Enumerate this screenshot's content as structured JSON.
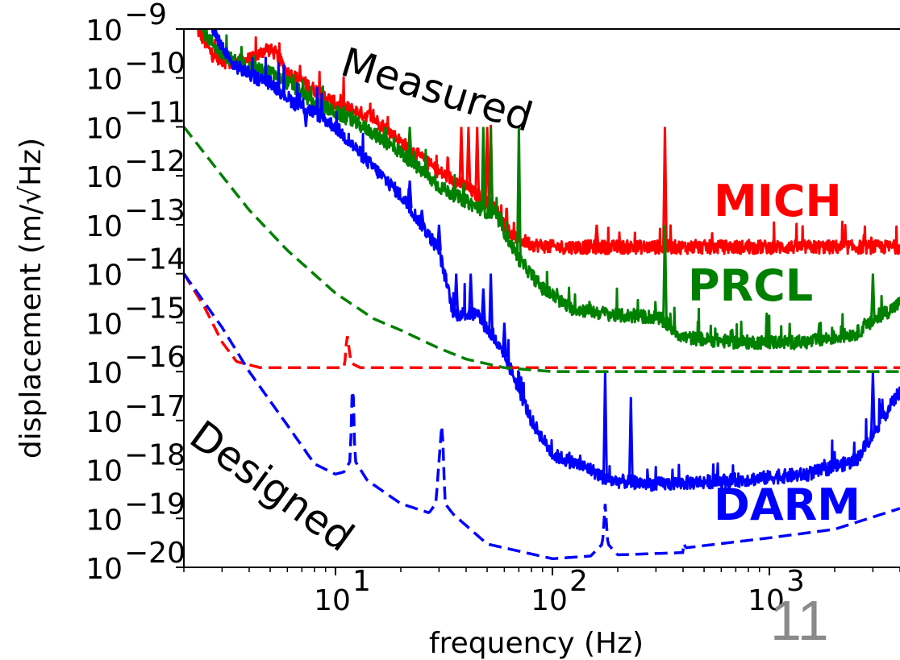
{
  "page_number": "11",
  "chart_data": {
    "type": "line",
    "xscale": "log",
    "yscale": "log",
    "xlim": [
      2,
      4000
    ],
    "ylim": [
      1e-20,
      1e-09
    ],
    "xlabel": "frequency (Hz)",
    "ylabel": "displacement (m/√Hz)",
    "x_ticks": [
      {
        "value": 10,
        "base": "10",
        "exp": "1"
      },
      {
        "value": 100,
        "base": "10",
        "exp": "2"
      },
      {
        "value": 1000,
        "base": "10",
        "exp": "3"
      }
    ],
    "y_ticks": [
      {
        "value": 1e-09,
        "base": "10",
        "exp": "−9"
      },
      {
        "value": 1e-10,
        "base": "10",
        "exp": "−10"
      },
      {
        "value": 1e-11,
        "base": "10",
        "exp": "−11"
      },
      {
        "value": 1e-12,
        "base": "10",
        "exp": "−12"
      },
      {
        "value": 1e-13,
        "base": "10",
        "exp": "−13"
      },
      {
        "value": 1e-14,
        "base": "10",
        "exp": "−14"
      },
      {
        "value": 1e-15,
        "base": "10",
        "exp": "−15"
      },
      {
        "value": 1e-16,
        "base": "10",
        "exp": "−16"
      },
      {
        "value": 1e-17,
        "base": "10",
        "exp": "−17"
      },
      {
        "value": 1e-18,
        "base": "10",
        "exp": "−18"
      },
      {
        "value": 1e-19,
        "base": "10",
        "exp": "−19"
      },
      {
        "value": 1e-20,
        "base": "10",
        "exp": "−20"
      }
    ],
    "series": [
      {
        "key": "mich_measured",
        "group": "measured",
        "color": "#ff0000",
        "style": "solid",
        "points": [
          [
            2.3,
            1e-09
          ],
          [
            2.7,
            3e-10
          ],
          [
            3.2,
            2e-10
          ],
          [
            4.2,
            2.5e-10
          ],
          [
            4.8,
            4e-10
          ],
          [
            5.3,
            3.2e-10
          ],
          [
            6,
            1.3e-10
          ],
          [
            7.5,
            7e-11
          ],
          [
            10,
            3e-11
          ],
          [
            15,
            1.5e-11
          ],
          [
            20,
            5e-12
          ],
          [
            30,
            1.2e-12
          ],
          [
            40,
            6e-13
          ],
          [
            55,
            2e-13
          ],
          [
            65,
            6e-14
          ],
          [
            80,
            4e-14
          ],
          [
            100,
            3.5e-14
          ],
          [
            300,
            3.5e-14
          ],
          [
            1000,
            3.5e-14
          ],
          [
            4000,
            3.5e-14
          ]
        ],
        "spikes": [
          [
            38,
            1e-11
          ],
          [
            41,
            1e-11
          ],
          [
            45,
            1e-11
          ],
          [
            50,
            1e-11
          ],
          [
            52,
            1.1e-11
          ],
          [
            330,
            1e-11
          ],
          [
            160,
            1e-13
          ]
        ]
      },
      {
        "key": "prcl_measured",
        "group": "measured",
        "color": "#008000",
        "style": "solid",
        "points": [
          [
            2.4,
            1e-09
          ],
          [
            3,
            3e-10
          ],
          [
            4,
            1.6e-10
          ],
          [
            5,
            1.3e-10
          ],
          [
            6.3,
            7e-11
          ],
          [
            8,
            3e-11
          ],
          [
            10,
            2e-11
          ],
          [
            14,
            9e-12
          ],
          [
            20,
            3e-12
          ],
          [
            30,
            6e-13
          ],
          [
            40,
            3e-13
          ],
          [
            55,
            1.5e-13
          ],
          [
            70,
            2e-14
          ],
          [
            90,
            5e-15
          ],
          [
            120,
            2e-15
          ],
          [
            200,
            1.4e-15
          ],
          [
            300,
            1.3e-15
          ],
          [
            330,
            1e-15
          ],
          [
            400,
            5e-16
          ],
          [
            700,
            4e-16
          ],
          [
            1500,
            4e-16
          ],
          [
            2500,
            6e-16
          ],
          [
            4000,
            2.5e-15
          ]
        ],
        "spikes": [
          [
            17,
            1e-11
          ],
          [
            22,
            1e-11
          ],
          [
            26,
            2e-12
          ],
          [
            48,
            1e-11
          ],
          [
            52,
            1e-11
          ],
          [
            70,
            1e-11
          ],
          [
            330,
            1e-13
          ],
          [
            3000,
            1e-14
          ],
          [
            1700,
            1e-15
          ]
        ]
      },
      {
        "key": "darm_measured",
        "group": "measured",
        "color": "#0000ff",
        "style": "solid",
        "points": [
          [
            2.7,
            1e-09
          ],
          [
            3.3,
            2e-10
          ],
          [
            4.3,
            1e-10
          ],
          [
            5,
            8e-11
          ],
          [
            6.5,
            3e-11
          ],
          [
            8,
            2e-11
          ],
          [
            10,
            1e-11
          ],
          [
            14,
            2e-12
          ],
          [
            20,
            4e-13
          ],
          [
            25,
            1e-13
          ],
          [
            30,
            3e-14
          ],
          [
            35,
            1.5e-15
          ],
          [
            45,
            1.5e-15
          ],
          [
            55,
            4e-16
          ],
          [
            65,
            1e-16
          ],
          [
            80,
            1e-17
          ],
          [
            100,
            2e-18
          ],
          [
            150,
            1e-18
          ],
          [
            180,
            6e-19
          ],
          [
            300,
            5e-19
          ],
          [
            700,
            6e-19
          ],
          [
            1500,
            8e-19
          ],
          [
            2500,
            1.5e-18
          ],
          [
            4000,
            4e-17
          ]
        ],
        "spikes": [
          [
            7.3,
            1e-11
          ],
          [
            16,
            1e-12
          ],
          [
            18,
            8e-13
          ],
          [
            22,
            8e-13
          ],
          [
            25,
            2e-13
          ],
          [
            30,
            1e-13
          ],
          [
            36,
            1e-14
          ],
          [
            42,
            1e-14
          ],
          [
            48,
            5e-15
          ],
          [
            52,
            1e-14
          ],
          [
            60,
            1e-15
          ],
          [
            70,
            1e-16
          ],
          [
            175,
            1e-16
          ],
          [
            230,
            3e-17
          ],
          [
            3000,
            1e-16
          ]
        ]
      },
      {
        "key": "mich_designed",
        "group": "designed",
        "color": "#ff0000",
        "style": "dashed",
        "points": [
          [
            2,
            1e-14
          ],
          [
            2.5,
            2e-15
          ],
          [
            3,
            4e-16
          ],
          [
            3.5,
            1.6e-16
          ],
          [
            4.5,
            1.2e-16
          ],
          [
            10,
            1.2e-16
          ],
          [
            11,
            1.2e-16
          ],
          [
            11.3,
            6e-16
          ],
          [
            11.8,
            1.5e-16
          ],
          [
            13,
            1.2e-16
          ],
          [
            4000,
            1.2e-16
          ]
        ]
      },
      {
        "key": "prcl_designed",
        "group": "designed",
        "color": "#008000",
        "style": "dashed",
        "points": [
          [
            2,
            1e-11
          ],
          [
            3,
            1e-12
          ],
          [
            4,
            2e-13
          ],
          [
            6,
            3e-14
          ],
          [
            10,
            4e-15
          ],
          [
            15,
            1.2e-15
          ],
          [
            20,
            7e-16
          ],
          [
            30,
            3e-16
          ],
          [
            40,
            1.8e-16
          ],
          [
            60,
            1.2e-16
          ],
          [
            100,
            1e-16
          ],
          [
            4000,
            1e-16
          ]
        ]
      },
      {
        "key": "darm_designed",
        "group": "designed",
        "color": "#0000ff",
        "style": "dashed",
        "points": [
          [
            2,
            1e-14
          ],
          [
            3,
            8e-16
          ],
          [
            4,
            1e-16
          ],
          [
            6,
            8e-18
          ],
          [
            8,
            1.3e-18
          ],
          [
            10,
            8e-19
          ],
          [
            11,
            9e-19
          ],
          [
            11.7,
            1.5e-18
          ],
          [
            12,
            1e-16
          ],
          [
            12.3,
            1.5e-18
          ],
          [
            14,
            6e-19
          ],
          [
            20,
            2e-19
          ],
          [
            27,
            1.3e-19
          ],
          [
            29,
            2e-19
          ],
          [
            31,
            1e-17
          ],
          [
            32,
            2e-19
          ],
          [
            35,
            1.2e-19
          ],
          [
            50,
            3e-20
          ],
          [
            100,
            1.5e-20
          ],
          [
            150,
            1.7e-20
          ],
          [
            170,
            3e-20
          ],
          [
            175,
            2e-19
          ],
          [
            180,
            3e-20
          ],
          [
            200,
            1.8e-20
          ],
          [
            400,
            2e-20
          ],
          [
            405,
            3.5e-20
          ],
          [
            410,
            2.5e-20
          ],
          [
            1000,
            4e-20
          ],
          [
            2000,
            6e-20
          ],
          [
            4000,
            1.6e-19
          ]
        ]
      }
    ],
    "annotations": [
      {
        "key": "measured",
        "text": "Measured",
        "color": "#000000"
      },
      {
        "key": "designed",
        "text": "Designed",
        "color": "#000000"
      },
      {
        "key": "mich",
        "text": "MICH",
        "color": "#ff0000"
      },
      {
        "key": "prcl",
        "text": "PRCL",
        "color": "#008000"
      },
      {
        "key": "darm",
        "text": "DARM",
        "color": "#0000ff"
      }
    ]
  }
}
